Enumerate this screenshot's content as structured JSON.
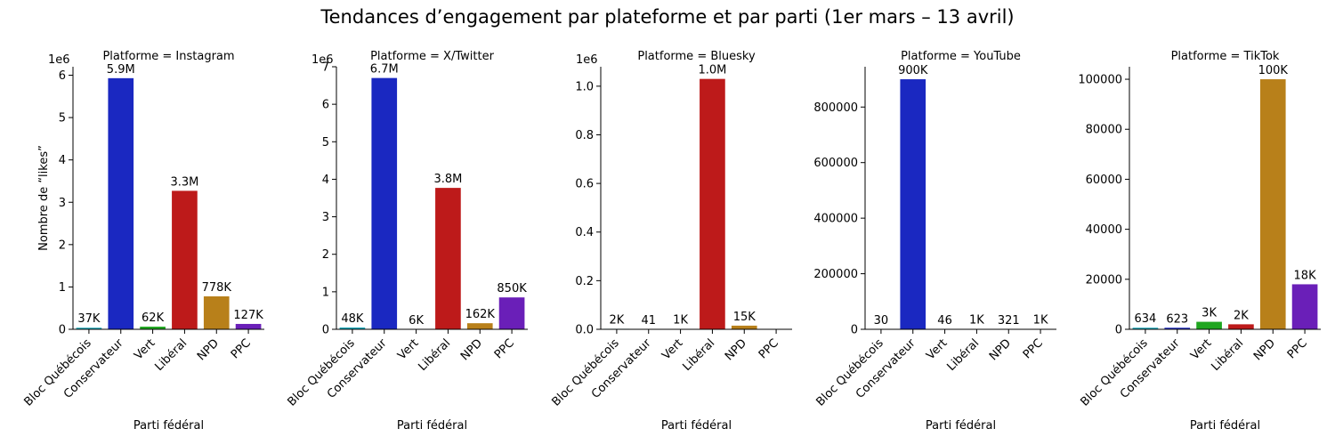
{
  "figure_title": "Tendances d’engagement par plateforme et par parti (1er mars – 13 avril)",
  "colors": {
    "Bloc Québécois": "#1aa7b8",
    "Conservateur": "#1a28c1",
    "Vert": "#1fa61f",
    "Libéral": "#bd1a1a",
    "NPD": "#b8801a",
    "PPC": "#6a1fb8"
  },
  "chart_data": [
    {
      "type": "bar",
      "title": "Platforme = Instagram",
      "xlabel": "Parti fédéral",
      "ylabel": "Nombre de “likes”",
      "categories": [
        "Bloc Québécois",
        "Conservateur",
        "Vert",
        "Libéral",
        "NPD",
        "PPC"
      ],
      "values": [
        37000,
        5930000,
        62000,
        3270000,
        778000,
        127000
      ],
      "data_labels": [
        "37K",
        "5.9M",
        "62K",
        "3.3M",
        "778K",
        "127K"
      ],
      "ylim": [
        0,
        6200000
      ],
      "yticks": [
        0,
        1000000,
        2000000,
        3000000,
        4000000,
        5000000,
        6000000
      ],
      "ytick_labels": [
        "0",
        "1",
        "2",
        "3",
        "4",
        "5",
        "6"
      ],
      "offset_label": "1e6"
    },
    {
      "type": "bar",
      "title": "Platforme = X/Twitter",
      "xlabel": "Parti fédéral",
      "ylabel": "",
      "categories": [
        "Bloc Québécois",
        "Conservateur",
        "Vert",
        "Libéral",
        "NPD",
        "PPC"
      ],
      "values": [
        48000,
        6700000,
        6000,
        3770000,
        162000,
        850000
      ],
      "data_labels": [
        "48K",
        "6.7M",
        "6K",
        "3.8M",
        "162K",
        "850K"
      ],
      "ylim": [
        0,
        7000000
      ],
      "yticks": [
        0,
        1000000,
        2000000,
        3000000,
        4000000,
        5000000,
        6000000,
        7000000
      ],
      "ytick_labels": [
        "0",
        "1",
        "2",
        "3",
        "4",
        "5",
        "6",
        "7"
      ],
      "offset_label": "1e6"
    },
    {
      "type": "bar",
      "title": "Platforme = Bluesky",
      "xlabel": "Parti fédéral",
      "ylabel": "",
      "categories": [
        "Bloc Québécois",
        "Conservateur",
        "Vert",
        "Libéral",
        "NPD",
        "PPC"
      ],
      "values": [
        2000,
        41,
        1000,
        1030000,
        15000,
        0
      ],
      "data_labels": [
        "2K",
        "41",
        "1K",
        "1.0M",
        "15K",
        ""
      ],
      "ylim": [
        0,
        1080000
      ],
      "yticks": [
        0,
        200000,
        400000,
        600000,
        800000,
        1000000
      ],
      "ytick_labels": [
        "0.0",
        "0.2",
        "0.4",
        "0.6",
        "0.8",
        "1.0"
      ],
      "offset_label": "1e6"
    },
    {
      "type": "bar",
      "title": "Platforme = YouTube",
      "xlabel": "Parti fédéral",
      "ylabel": "",
      "categories": [
        "Bloc Québécois",
        "Conservateur",
        "Vert",
        "Libéral",
        "NPD",
        "PPC"
      ],
      "values": [
        30,
        900000,
        46,
        1000,
        321,
        1000
      ],
      "data_labels": [
        "30",
        "900K",
        "46",
        "1K",
        "321",
        "1K"
      ],
      "ylim": [
        0,
        945000
      ],
      "yticks": [
        0,
        200000,
        400000,
        600000,
        800000
      ],
      "ytick_labels": [
        "0",
        "200000",
        "400000",
        "600000",
        "800000"
      ],
      "offset_label": ""
    },
    {
      "type": "bar",
      "title": "Platforme = TikTok",
      "xlabel": "Parti fédéral",
      "ylabel": "",
      "categories": [
        "Bloc Québécois",
        "Conservateur",
        "Vert",
        "Libéral",
        "NPD",
        "PPC"
      ],
      "values": [
        634,
        623,
        3000,
        2000,
        100000,
        18000
      ],
      "data_labels": [
        "634",
        "623",
        "3K",
        "2K",
        "100K",
        "18K"
      ],
      "ylim": [
        0,
        105000
      ],
      "yticks": [
        0,
        20000,
        40000,
        60000,
        80000,
        100000
      ],
      "ytick_labels": [
        "0",
        "20000",
        "40000",
        "60000",
        "80000",
        "100000"
      ],
      "offset_label": ""
    }
  ]
}
